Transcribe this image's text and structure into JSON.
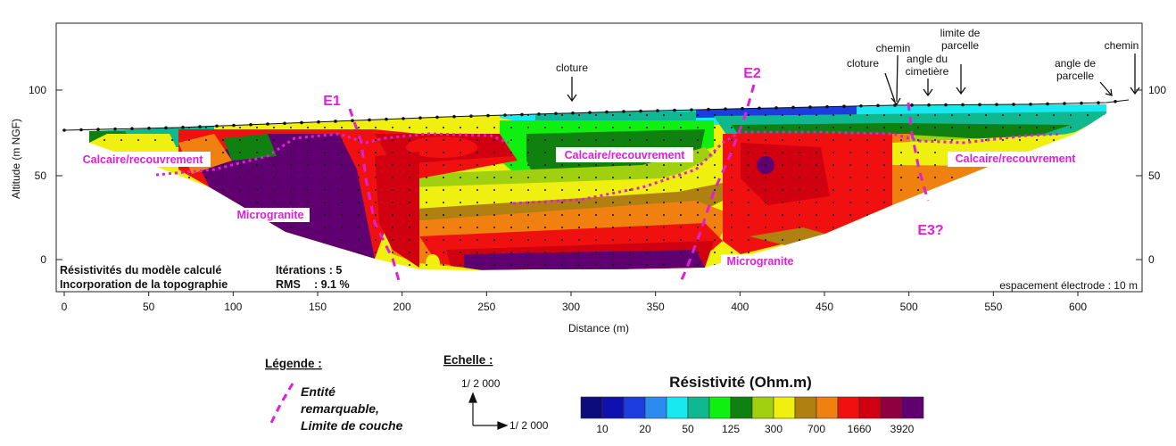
{
  "profile": {
    "axes": {
      "y_label": "Altitude (m NGF)",
      "x_label": "Distance (m)",
      "x_ticks": [
        "0",
        "50",
        "100",
        "150",
        "200",
        "250",
        "300",
        "350",
        "400",
        "450",
        "500",
        "550",
        "600"
      ],
      "y_ticks": [
        "100",
        "50",
        "0"
      ]
    },
    "surface_annotations": [
      "cloture",
      "cloture",
      "chemin",
      "angle du cimetière",
      "limite de parcelle",
      "angle de parcelle",
      "chemin"
    ],
    "entities": [
      "E1",
      "E2",
      "E3?"
    ],
    "layers": {
      "calcaire_left": "Calcaire/recouvrement",
      "calcaire_mid": "Calcaire/recouvrement",
      "calcaire_right": "Calcaire/recouvrement",
      "microgranite_left": "Microgranite",
      "microgranite_mid": "Microgranite"
    },
    "info": {
      "line1": "Résistivités du modèle calculé",
      "line2": "Incorporation de la topographie",
      "iter_label": "Itérations : 5",
      "rms_label": "RMS",
      "rms_value": ": 9.1 %",
      "spacing": "espacement électrode : 10 m"
    }
  },
  "legend": {
    "title": "Légende :",
    "item_line1": "Entité",
    "item_line2": "remarquable,",
    "item_line3": "Limite de couche"
  },
  "scale": {
    "title": "Echelle :",
    "vertical": "1/ 2 000",
    "horizontal": "1/ 2 000"
  },
  "colorbar": {
    "title": "Résistivité (Ohm.m)",
    "labels": [
      "10",
      "20",
      "50",
      "125",
      "300",
      "700",
      "1660",
      "3920"
    ],
    "colors": [
      "#0c0c7a",
      "#1010b0",
      "#1c3ce0",
      "#2a8cf0",
      "#18e8f0",
      "#10b890",
      "#10f010",
      "#108010",
      "#a0d010",
      "#f0f010",
      "#b08010",
      "#f08010",
      "#f01010",
      "#d00010",
      "#900040",
      "#600070"
    ]
  }
}
